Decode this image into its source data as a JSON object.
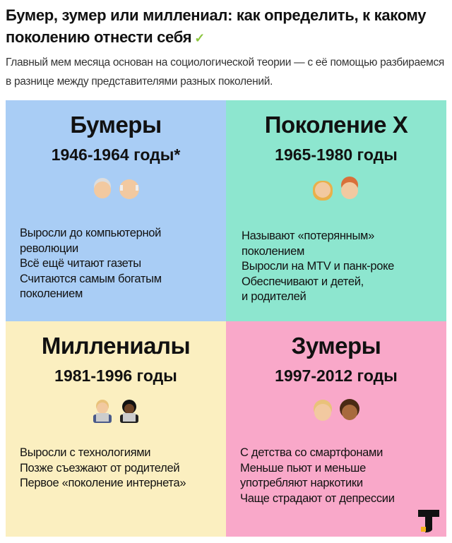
{
  "header": {
    "title": "Бумер, зумер или миллениал: как определить, к какому поколению отнести себя",
    "check_icon": "checkmark-icon",
    "lead": "Главный мем месяца основан на социологической теории — с её помощью разбираемся в разнице между представителями разных поколений."
  },
  "quadrants": [
    {
      "title": "Бумеры",
      "years": "1946-1964 годы*",
      "color": "#a9cdf5",
      "emoji": [
        "old-woman-icon",
        "old-man-icon"
      ],
      "lines": [
        "Выросли до компьютерной",
        "революции",
        "Всё ещё читают газеты",
        "Считаются самым богатым",
        "поколением"
      ]
    },
    {
      "title": "Поколение X",
      "years": "1965-1980 годы",
      "color": "#8de6cf",
      "emoji": [
        "woman-icon",
        "man-icon"
      ],
      "lines": [
        "Называют «потерянным»",
        "поколением",
        "Выросли на MTV и панк-роке",
        "Обеспечивают и детей,",
        "и родителей"
      ]
    },
    {
      "title": "Миллениалы",
      "years": "1981-1996 годы",
      "color": "#fbefc0",
      "emoji": [
        "technologist-icon",
        "technologist-icon"
      ],
      "lines": [
        "Выросли с технологиями",
        "Позже съезжают от родителей",
        "Первое «поколение интернета»"
      ]
    },
    {
      "title": "Зумеры",
      "years": "1997-2012 годы",
      "color": "#f9a8c9",
      "emoji": [
        "boy-icon",
        "girl-icon"
      ],
      "lines": [
        "С детства со смартфонами",
        "Меньше пьют и меньше",
        "употребляют наркотики",
        "Чаще страдают от депрессии"
      ]
    }
  ],
  "logo": "T"
}
